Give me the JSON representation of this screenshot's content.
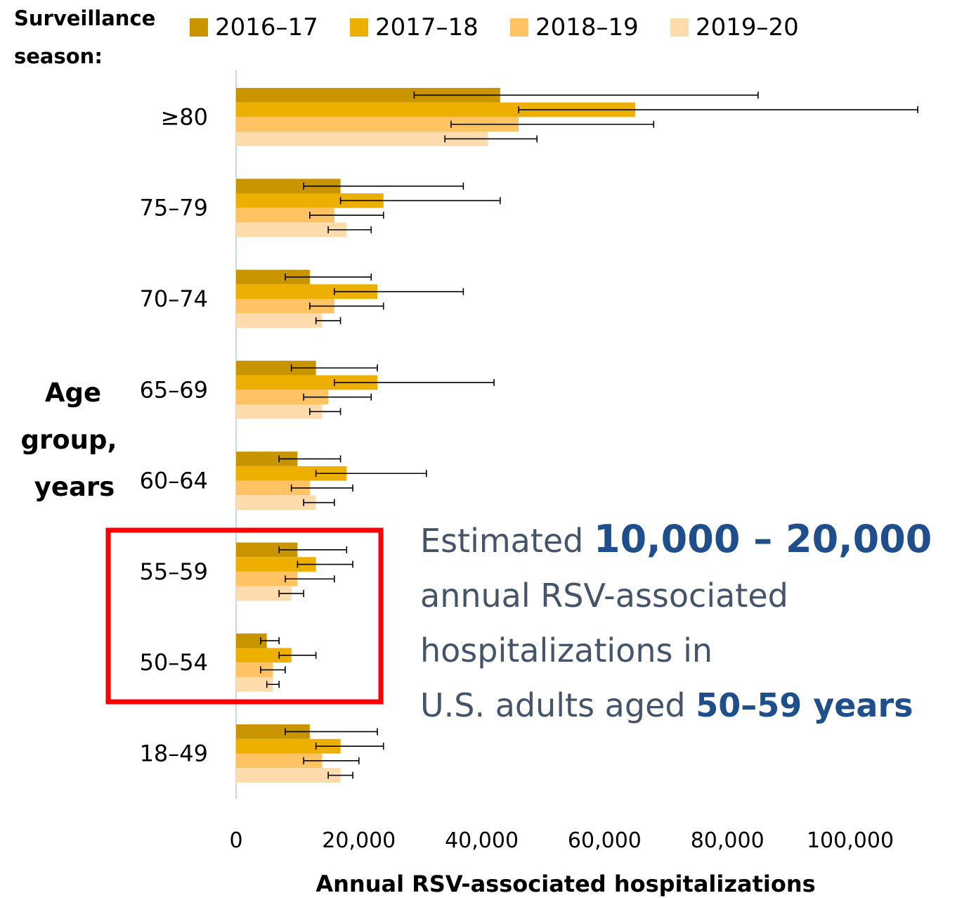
{
  "legend": {
    "title_line1": "Surveillance",
    "title_line2": "season:"
  },
  "y_axis": {
    "title_line1": "Age",
    "title_line2": "group,",
    "title_line3": "years"
  },
  "annotation": {
    "part1": "Estimated ",
    "highlight1": "10,000 – 20,000",
    "part2": "annual RSV-associated",
    "part3": "hospitalizations in",
    "part4": "U.S. adults aged ",
    "highlight2": "50–59 years"
  },
  "highlight_box_color": "#ff0000",
  "chart_data": {
    "type": "bar",
    "orientation": "horizontal",
    "categories": [
      "≥80",
      "75–79",
      "70–74",
      "65–69",
      "60–64",
      "55–59",
      "50–54",
      "18–49"
    ],
    "series": [
      {
        "name": "2016–17",
        "color": "#c89400",
        "values": [
          43000,
          17000,
          12000,
          13000,
          10000,
          10000,
          5000,
          12000
        ],
        "error_low": [
          29000,
          11000,
          8000,
          9000,
          7000,
          7000,
          4000,
          8000
        ],
        "error_high": [
          85000,
          37000,
          22000,
          23000,
          17000,
          18000,
          7000,
          23000
        ]
      },
      {
        "name": "2017–18",
        "color": "#eeb000",
        "values": [
          65000,
          24000,
          23000,
          23000,
          18000,
          13000,
          9000,
          17000
        ],
        "error_low": [
          46000,
          17000,
          16000,
          16000,
          13000,
          10000,
          7000,
          13000
        ],
        "error_high": [
          111000,
          43000,
          37000,
          42000,
          31000,
          19000,
          13000,
          24000
        ]
      },
      {
        "name": "2018–19",
        "color": "#ffc364",
        "values": [
          46000,
          16000,
          16000,
          15000,
          12000,
          10000,
          6000,
          14000
        ],
        "error_low": [
          35000,
          12000,
          12000,
          11000,
          9000,
          8000,
          4000,
          11000
        ],
        "error_high": [
          68000,
          24000,
          24000,
          22000,
          19000,
          16000,
          8000,
          20000
        ]
      },
      {
        "name": "2019–20",
        "color": "#fedbad",
        "values": [
          41000,
          18000,
          14000,
          14000,
          13000,
          9000,
          6000,
          17000
        ],
        "error_low": [
          34000,
          15000,
          13000,
          12000,
          11000,
          7000,
          5000,
          15000
        ],
        "error_high": [
          49000,
          22000,
          17000,
          17000,
          16000,
          11000,
          7000,
          19000
        ]
      }
    ],
    "xlabel": "Annual RSV-associated hospitalizations",
    "xticks": [
      "0",
      "20,000",
      "40,000",
      "60,000",
      "80,000",
      "100,000"
    ],
    "xtick_values": [
      0,
      20000,
      40000,
      60000,
      80000,
      100000
    ],
    "xlim": [
      0,
      112000
    ],
    "highlighted_categories": [
      "55–59",
      "50–54"
    ],
    "legend_position": "top",
    "grid": false
  }
}
